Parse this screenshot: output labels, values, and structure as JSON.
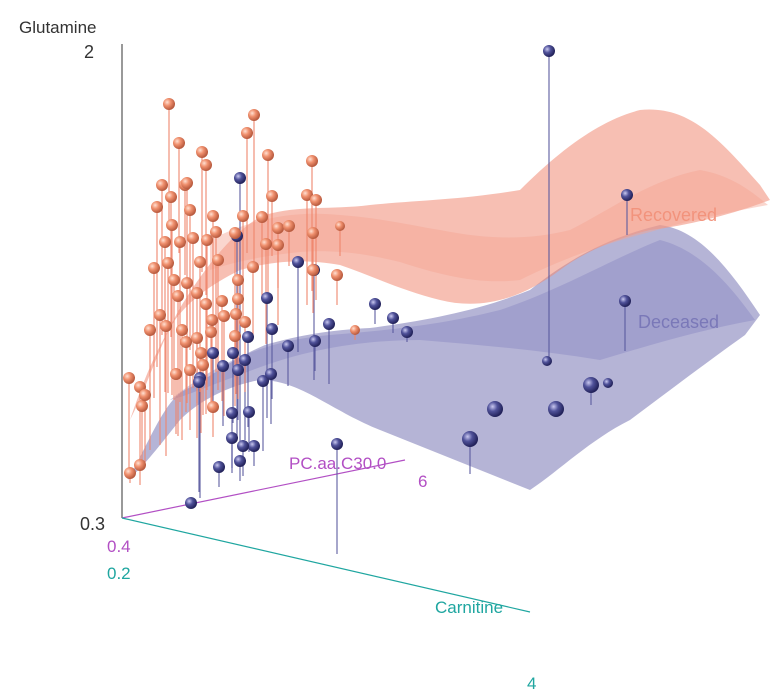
{
  "chart_data": {
    "type": "scatter",
    "axes": {
      "z": {
        "label": "Glutamine",
        "ticks": [
          "2",
          "0.3"
        ]
      },
      "y": {
        "label": "PC.aa.C30.0",
        "ticks": [
          "0.4",
          "6"
        ]
      },
      "x": {
        "label": "Carnitine",
        "ticks": [
          "0.2",
          "4"
        ]
      }
    },
    "series": [
      {
        "name": "Recovered",
        "color": "#f0856c",
        "surface_color": "#f08a74"
      },
      {
        "name": "Deceased",
        "color": "#5a5a9e",
        "surface_color": "#7876b4"
      }
    ],
    "grid": false,
    "legend": "inline labels on surfaces"
  }
}
